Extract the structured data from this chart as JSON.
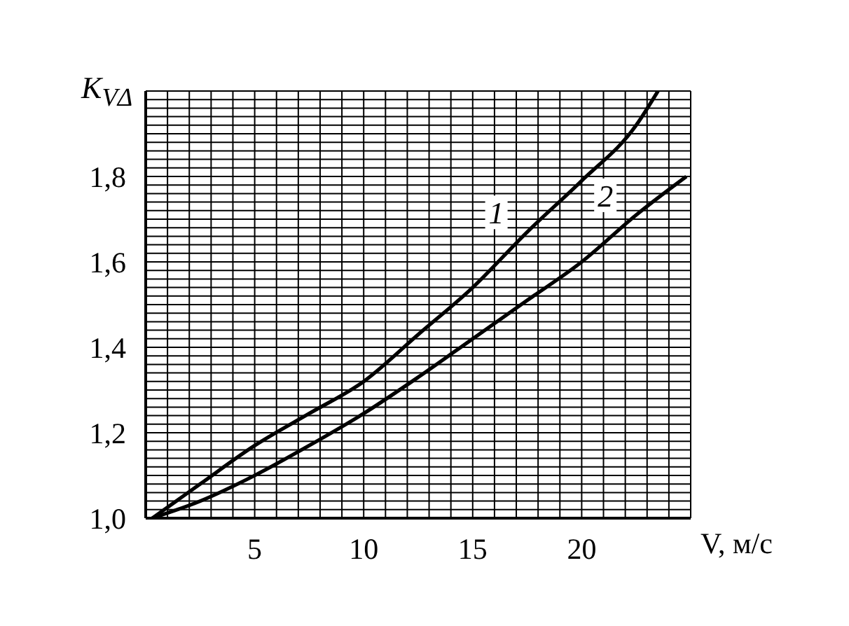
{
  "chart_data": {
    "type": "line",
    "xlabel": "V, м/с",
    "ylabel": "K$_{VΔ}$",
    "xlim": [
      0,
      25
    ],
    "ylim": [
      1.0,
      2.0
    ],
    "xticks": [
      {
        "value": 0,
        "label": null
      },
      {
        "value": 1,
        "label": null
      },
      {
        "value": 2,
        "label": null
      },
      {
        "value": 3,
        "label": null
      },
      {
        "value": 4,
        "label": null
      },
      5,
      {
        "value": 6,
        "label": null
      },
      {
        "value": 7,
        "label": null
      },
      {
        "value": 8,
        "label": null
      },
      {
        "value": 9,
        "label": null
      },
      10,
      {
        "value": 11,
        "label": null
      },
      {
        "value": 12,
        "label": null
      },
      {
        "value": 13,
        "label": null
      },
      {
        "value": 14,
        "label": null
      },
      15,
      {
        "value": 16,
        "label": null
      },
      {
        "value": 17,
        "label": null
      },
      {
        "value": 18,
        "label": null
      },
      {
        "value": 19,
        "label": null
      },
      20,
      {
        "value": 21,
        "label": null
      },
      {
        "value": 22,
        "label": null
      },
      {
        "value": 23,
        "label": null
      },
      {
        "value": 24,
        "label": null
      },
      {
        "value": 25,
        "label": null
      }
    ],
    "yticks": [
      {
        "value": 1.0,
        "label": "1,0"
      },
      {
        "value": 1.02,
        "label": null
      },
      {
        "value": 1.04,
        "label": null
      },
      {
        "value": 1.06,
        "label": null
      },
      {
        "value": 1.08,
        "label": null
      },
      {
        "value": 1.1,
        "label": null
      },
      {
        "value": 1.12,
        "label": null
      },
      {
        "value": 1.14,
        "label": null
      },
      {
        "value": 1.16,
        "label": null
      },
      {
        "value": 1.18,
        "label": null
      },
      {
        "value": 1.2,
        "label": "1,2"
      },
      {
        "value": 1.22,
        "label": null
      },
      {
        "value": 1.24,
        "label": null
      },
      {
        "value": 1.26,
        "label": null
      },
      {
        "value": 1.28,
        "label": null
      },
      {
        "value": 1.3,
        "label": null
      },
      {
        "value": 1.32,
        "label": null
      },
      {
        "value": 1.34,
        "label": null
      },
      {
        "value": 1.36,
        "label": null
      },
      {
        "value": 1.38,
        "label": null
      },
      {
        "value": 1.4,
        "label": "1,4"
      },
      {
        "value": 1.42,
        "label": null
      },
      {
        "value": 1.44,
        "label": null
      },
      {
        "value": 1.46,
        "label": null
      },
      {
        "value": 1.48,
        "label": null
      },
      {
        "value": 1.5,
        "label": null
      },
      {
        "value": 1.52,
        "label": null
      },
      {
        "value": 1.54,
        "label": null
      },
      {
        "value": 1.56,
        "label": null
      },
      {
        "value": 1.58,
        "label": null
      },
      {
        "value": 1.6,
        "label": "1,6"
      },
      {
        "value": 1.62,
        "label": null
      },
      {
        "value": 1.64,
        "label": null
      },
      {
        "value": 1.66,
        "label": null
      },
      {
        "value": 1.68,
        "label": null
      },
      {
        "value": 1.7,
        "label": null
      },
      {
        "value": 1.72,
        "label": null
      },
      {
        "value": 1.74,
        "label": null
      },
      {
        "value": 1.76,
        "label": null
      },
      {
        "value": 1.78,
        "label": null
      },
      {
        "value": 1.8,
        "label": "1,8"
      },
      {
        "value": 1.82,
        "label": null
      },
      {
        "value": 1.84,
        "label": null
      },
      {
        "value": 1.86,
        "label": null
      },
      {
        "value": 1.88,
        "label": null
      },
      {
        "value": 1.9,
        "label": null
      },
      {
        "value": 1.92,
        "label": null
      },
      {
        "value": 1.94,
        "label": null
      },
      {
        "value": 1.96,
        "label": null
      },
      {
        "value": 1.98,
        "label": null
      },
      {
        "value": 2.0,
        "label": null
      }
    ],
    "grid": true,
    "marker": "none",
    "line_style": "solid",
    "series": [
      {
        "name": "1",
        "color": "#000000",
        "x": [
          0.3,
          2.5,
          5,
          7.5,
          10,
          12.5,
          15,
          17.5,
          20,
          22.5,
          23.5
        ],
        "values": [
          1.0,
          1.08,
          1.17,
          1.245,
          1.32,
          1.43,
          1.54,
          1.67,
          1.79,
          1.92,
          2.0
        ]
      },
      {
        "name": "2",
        "color": "#000000",
        "x": [
          0.3,
          2.5,
          5,
          7.5,
          10,
          12.5,
          15,
          17.5,
          20,
          22.5,
          24.8
        ],
        "values": [
          1.0,
          1.04,
          1.1,
          1.17,
          1.245,
          1.33,
          1.42,
          1.51,
          1.6,
          1.71,
          1.8
        ]
      }
    ]
  }
}
